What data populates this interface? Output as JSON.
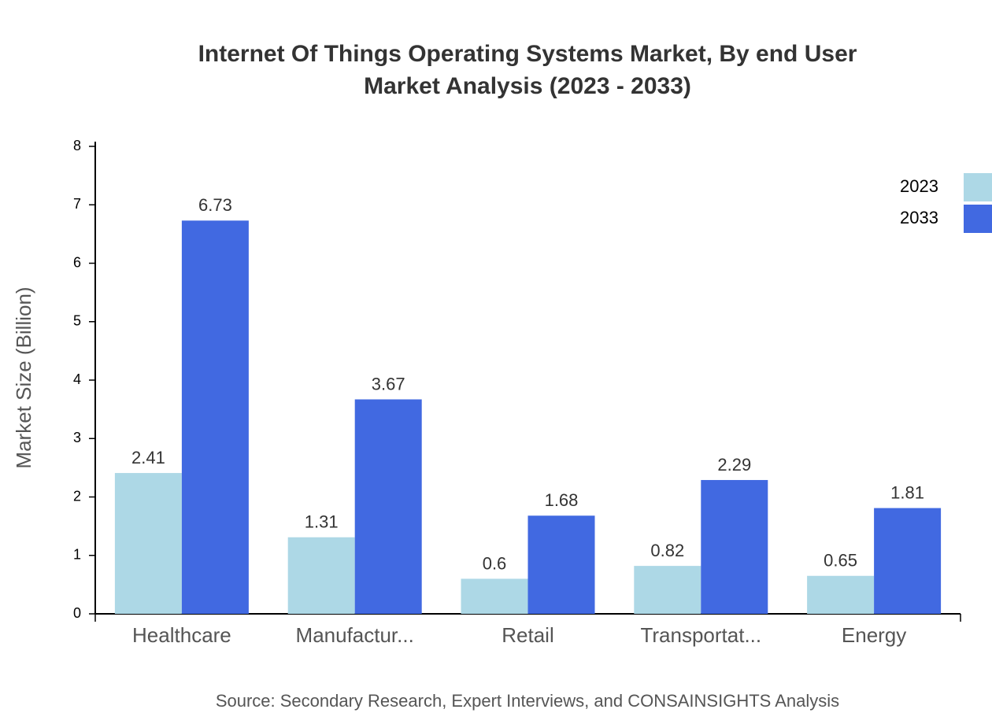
{
  "chart_data": {
    "type": "bar",
    "title": "Internet Of Things Operating Systems Market, By end User Market Analysis (2023 - 2033)",
    "y_label": "Market Size (Billion)",
    "source": "Source: Secondary Research, Expert Interviews, and CONSAINSIGHTS Analysis",
    "categories": [
      "Healthcare",
      "Manufactur...",
      "Retail",
      "Transportat...",
      "Energy"
    ],
    "series": [
      {
        "name": "2023",
        "color": "#add8e6",
        "values": [
          2.41,
          1.31,
          0.6,
          0.82,
          0.65
        ]
      },
      {
        "name": "2033",
        "color": "#4169e1",
        "values": [
          6.73,
          3.67,
          1.68,
          2.29,
          1.81
        ]
      }
    ],
    "ylim": [
      0,
      8
    ],
    "yticks": [
      0,
      1,
      2,
      3,
      4,
      5,
      6,
      7,
      8
    ],
    "legend": "top-right"
  }
}
